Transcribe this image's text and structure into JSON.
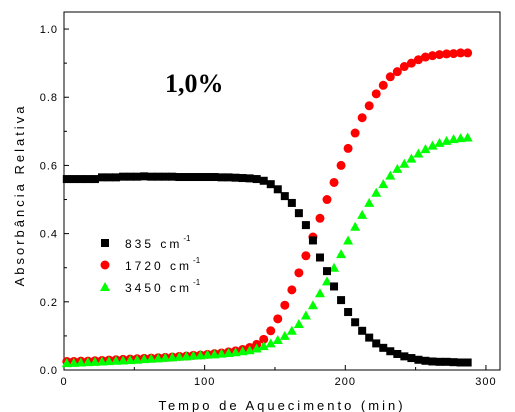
{
  "chart_data": {
    "type": "scatter",
    "xlabel": "Tempo de Aquecimento (min)",
    "ylabel": "Absorbância Relativa",
    "annotation": "1,0%",
    "xlim": [
      0,
      310
    ],
    "ylim": [
      0,
      1.05
    ],
    "xticks": [
      0,
      100,
      200,
      300
    ],
    "yticks": [
      0.0,
      0.2,
      0.4,
      0.6,
      0.8,
      1.0
    ],
    "xtick_labels": [
      "0",
      "100",
      "200",
      "300"
    ],
    "ytick_labels": [
      "0.0",
      "0.2",
      "0.4",
      "0.6",
      "0.8",
      "1.0"
    ],
    "legend_position": "middle-left",
    "series": [
      {
        "name": "835 cm",
        "name_sup": "-1",
        "marker": "square",
        "color": "#000000",
        "points": [
          [
            2,
            0.56
          ],
          [
            7,
            0.56
          ],
          [
            12,
            0.56
          ],
          [
            17,
            0.56
          ],
          [
            22,
            0.56
          ],
          [
            27,
            0.565
          ],
          [
            32,
            0.565
          ],
          [
            37,
            0.565
          ],
          [
            42,
            0.567
          ],
          [
            47,
            0.567
          ],
          [
            52,
            0.567
          ],
          [
            57,
            0.568
          ],
          [
            62,
            0.567
          ],
          [
            67,
            0.567
          ],
          [
            72,
            0.567
          ],
          [
            77,
            0.567
          ],
          [
            82,
            0.566
          ],
          [
            87,
            0.566
          ],
          [
            92,
            0.566
          ],
          [
            97,
            0.566
          ],
          [
            102,
            0.566
          ],
          [
            107,
            0.566
          ],
          [
            112,
            0.565
          ],
          [
            117,
            0.565
          ],
          [
            122,
            0.564
          ],
          [
            127,
            0.563
          ],
          [
            132,
            0.562
          ],
          [
            137,
            0.56
          ],
          [
            142,
            0.555
          ],
          [
            147,
            0.545
          ],
          [
            152,
            0.53
          ],
          [
            157,
            0.51
          ],
          [
            162,
            0.49
          ],
          [
            167,
            0.46
          ],
          [
            172,
            0.425
          ],
          [
            177,
            0.38
          ],
          [
            182,
            0.33
          ],
          [
            187,
            0.29
          ],
          [
            192,
            0.245
          ],
          [
            197,
            0.205
          ],
          [
            202,
            0.17
          ],
          [
            207,
            0.14
          ],
          [
            212,
            0.115
          ],
          [
            217,
            0.095
          ],
          [
            222,
            0.078
          ],
          [
            227,
            0.065
          ],
          [
            232,
            0.055
          ],
          [
            237,
            0.047
          ],
          [
            242,
            0.04
          ],
          [
            247,
            0.035
          ],
          [
            252,
            0.03
          ],
          [
            257,
            0.027
          ],
          [
            262,
            0.025
          ],
          [
            267,
            0.024
          ],
          [
            272,
            0.024
          ],
          [
            277,
            0.023
          ],
          [
            282,
            0.022
          ],
          [
            287,
            0.022
          ]
        ]
      },
      {
        "name": "1720 cm",
        "name_sup": "-1",
        "marker": "circle",
        "color": "#ff0000",
        "points": [
          [
            2,
            0.025
          ],
          [
            7,
            0.025
          ],
          [
            12,
            0.026
          ],
          [
            17,
            0.026
          ],
          [
            22,
            0.027
          ],
          [
            27,
            0.028
          ],
          [
            32,
            0.029
          ],
          [
            37,
            0.03
          ],
          [
            42,
            0.031
          ],
          [
            47,
            0.032
          ],
          [
            52,
            0.033
          ],
          [
            57,
            0.034
          ],
          [
            62,
            0.035
          ],
          [
            67,
            0.036
          ],
          [
            72,
            0.037
          ],
          [
            77,
            0.038
          ],
          [
            82,
            0.04
          ],
          [
            87,
            0.041
          ],
          [
            92,
            0.043
          ],
          [
            97,
            0.044
          ],
          [
            102,
            0.046
          ],
          [
            107,
            0.048
          ],
          [
            112,
            0.05
          ],
          [
            117,
            0.053
          ],
          [
            122,
            0.056
          ],
          [
            127,
            0.06
          ],
          [
            132,
            0.066
          ],
          [
            137,
            0.075
          ],
          [
            142,
            0.09
          ],
          [
            147,
            0.115
          ],
          [
            152,
            0.15
          ],
          [
            157,
            0.19
          ],
          [
            162,
            0.235
          ],
          [
            167,
            0.285
          ],
          [
            172,
            0.335
          ],
          [
            177,
            0.39
          ],
          [
            182,
            0.445
          ],
          [
            187,
            0.5
          ],
          [
            192,
            0.55
          ],
          [
            197,
            0.6
          ],
          [
            202,
            0.65
          ],
          [
            207,
            0.695
          ],
          [
            212,
            0.74
          ],
          [
            217,
            0.775
          ],
          [
            222,
            0.81
          ],
          [
            227,
            0.835
          ],
          [
            232,
            0.86
          ],
          [
            237,
            0.875
          ],
          [
            242,
            0.89
          ],
          [
            247,
            0.9
          ],
          [
            252,
            0.91
          ],
          [
            257,
            0.918
          ],
          [
            262,
            0.922
          ],
          [
            267,
            0.925
          ],
          [
            272,
            0.927
          ],
          [
            277,
            0.928
          ],
          [
            282,
            0.93
          ],
          [
            287,
            0.93
          ]
        ]
      },
      {
        "name": "3450 cm",
        "name_sup": "-1",
        "marker": "triangle",
        "color": "#00ff00",
        "points": [
          [
            2,
            0.02
          ],
          [
            7,
            0.021
          ],
          [
            12,
            0.022
          ],
          [
            17,
            0.023
          ],
          [
            22,
            0.024
          ],
          [
            27,
            0.025
          ],
          [
            32,
            0.026
          ],
          [
            37,
            0.027
          ],
          [
            42,
            0.028
          ],
          [
            47,
            0.029
          ],
          [
            52,
            0.03
          ],
          [
            57,
            0.032
          ],
          [
            62,
            0.033
          ],
          [
            67,
            0.034
          ],
          [
            72,
            0.036
          ],
          [
            77,
            0.037
          ],
          [
            82,
            0.039
          ],
          [
            87,
            0.04
          ],
          [
            92,
            0.042
          ],
          [
            97,
            0.043
          ],
          [
            102,
            0.045
          ],
          [
            107,
            0.046
          ],
          [
            112,
            0.048
          ],
          [
            117,
            0.05
          ],
          [
            122,
            0.052
          ],
          [
            127,
            0.055
          ],
          [
            132,
            0.058
          ],
          [
            137,
            0.063
          ],
          [
            142,
            0.07
          ],
          [
            147,
            0.078
          ],
          [
            152,
            0.088
          ],
          [
            157,
            0.1
          ],
          [
            162,
            0.115
          ],
          [
            167,
            0.135
          ],
          [
            172,
            0.16
          ],
          [
            177,
            0.19
          ],
          [
            182,
            0.225
          ],
          [
            187,
            0.26
          ],
          [
            192,
            0.3
          ],
          [
            197,
            0.34
          ],
          [
            202,
            0.38
          ],
          [
            207,
            0.42
          ],
          [
            212,
            0.455
          ],
          [
            217,
            0.49
          ],
          [
            222,
            0.52
          ],
          [
            227,
            0.545
          ],
          [
            232,
            0.57
          ],
          [
            237,
            0.59
          ],
          [
            242,
            0.605
          ],
          [
            247,
            0.62
          ],
          [
            252,
            0.635
          ],
          [
            257,
            0.648
          ],
          [
            262,
            0.658
          ],
          [
            267,
            0.666
          ],
          [
            272,
            0.672
          ],
          [
            277,
            0.677
          ],
          [
            282,
            0.68
          ],
          [
            287,
            0.682
          ]
        ]
      }
    ]
  }
}
